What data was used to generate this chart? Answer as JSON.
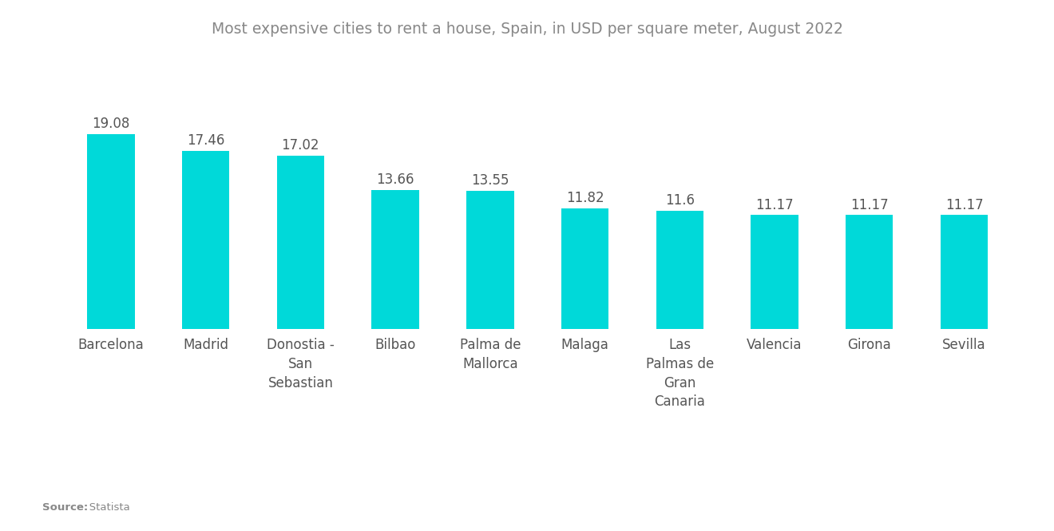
{
  "title": "Most expensive cities to rent a house, Spain, in USD per square meter, August 2022",
  "categories": [
    "Barcelona",
    "Madrid",
    "Donostia -\nSan\nSebastian",
    "Bilbao",
    "Palma de\nMallorca",
    "Malaga",
    "Las\nPalmas de\nGran\nCanaria",
    "Valencia",
    "Girona",
    "Sevilla"
  ],
  "values": [
    19.08,
    17.46,
    17.02,
    13.66,
    13.55,
    11.82,
    11.6,
    11.17,
    11.17,
    11.17
  ],
  "bar_color": "#00D9D9",
  "value_labels": [
    "19.08",
    "17.46",
    "17.02",
    "13.66",
    "13.55",
    "11.82",
    "11.6",
    "11.17",
    "11.17",
    "11.17"
  ],
  "background_color": "#ffffff",
  "title_color": "#888888",
  "title_fontsize": 13.5,
  "value_fontsize": 12,
  "label_fontsize": 12,
  "source_label_bold": "Source:",
  "source_label_normal": "   Statista",
  "ylim": [
    0,
    26
  ],
  "bar_width": 0.5
}
